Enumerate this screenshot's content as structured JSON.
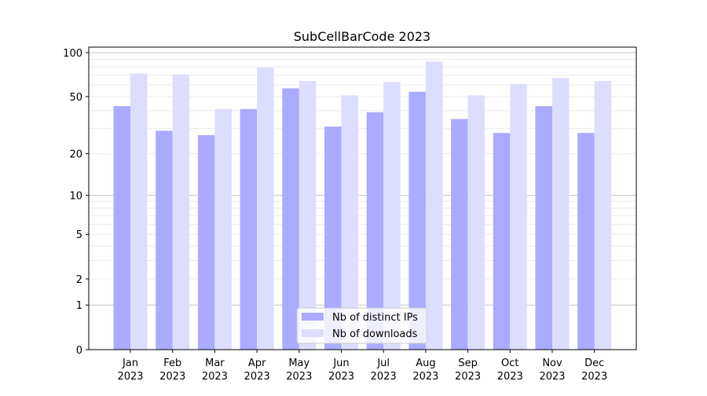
{
  "chart_data": {
    "type": "bar",
    "title": "SubCellBarCode 2023",
    "xlabel": "",
    "ylabel": "",
    "yscale": "log10(y+1)",
    "ylim": [
      0,
      100
    ],
    "yticks": [
      0,
      1,
      2,
      5,
      10,
      20,
      50,
      100
    ],
    "grid": true,
    "legend_position": "bottom-center",
    "categories": [
      [
        "Jan",
        "2023"
      ],
      [
        "Feb",
        "2023"
      ],
      [
        "Mar",
        "2023"
      ],
      [
        "Apr",
        "2023"
      ],
      [
        "May",
        "2023"
      ],
      [
        "Jun",
        "2023"
      ],
      [
        "Jul",
        "2023"
      ],
      [
        "Aug",
        "2023"
      ],
      [
        "Sep",
        "2023"
      ],
      [
        "Oct",
        "2023"
      ],
      [
        "Nov",
        "2023"
      ],
      [
        "Dec",
        "2023"
      ]
    ],
    "series": [
      {
        "name": "Nb of distinct IPs",
        "color": "#aaaaff",
        "values": [
          43,
          29,
          27,
          41,
          57,
          31,
          39,
          54,
          35,
          28,
          43,
          28
        ]
      },
      {
        "name": "Nb of downloads",
        "color": "#ddddff",
        "values": [
          72,
          71,
          41,
          79,
          64,
          51,
          63,
          87,
          51,
          61,
          67,
          64
        ]
      }
    ]
  }
}
